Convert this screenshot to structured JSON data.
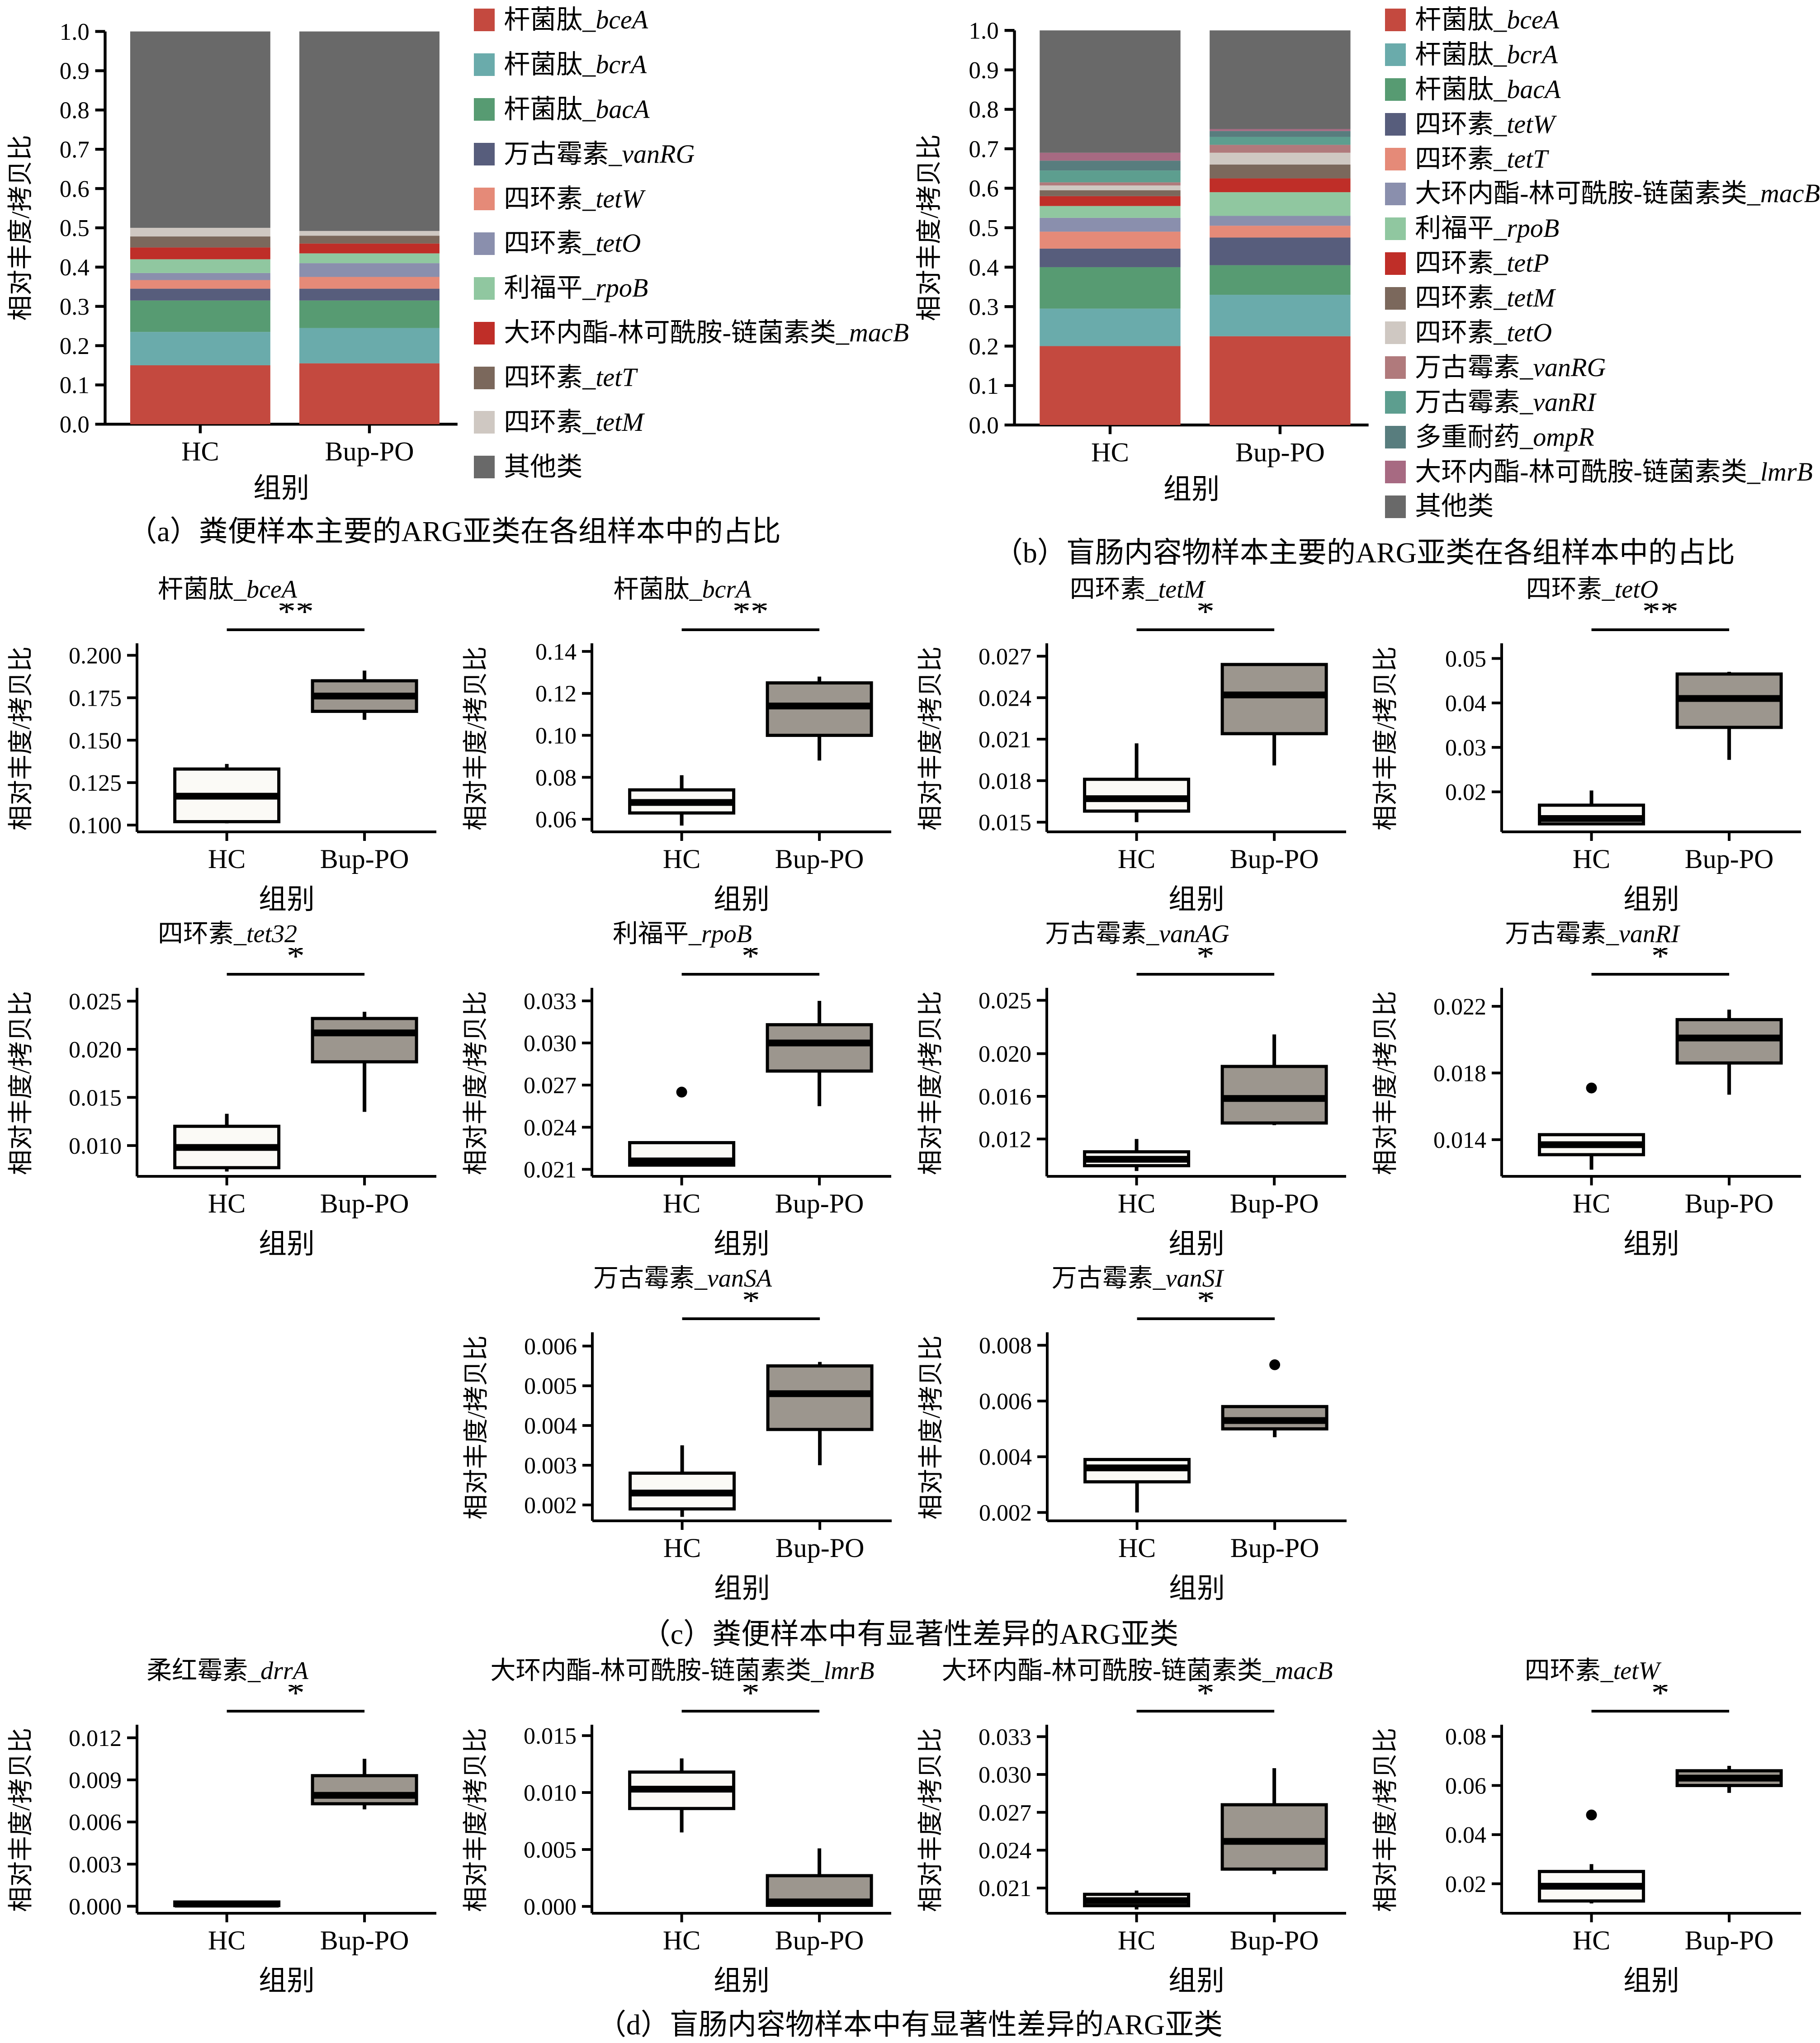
{
  "axis": {
    "ylabel": "相对丰度/拷贝比",
    "xlabel": "组别",
    "categories": [
      "HC",
      "Bup-PO"
    ]
  },
  "captions": {
    "a": "（a）粪便样本主要的ARG亚类在各组样本中的占比",
    "b": "（b）盲肠内容物样本主要的ARG亚类在各组样本中的占比",
    "c": "（c）粪便样本中有显著性差异的ARG亚类",
    "d": "（d）盲肠内容物样本中有显著性差异的ARG亚类"
  },
  "colors": {
    "red": "#c4493f",
    "teal": "#6aabab",
    "green": "#579b72",
    "darkslate": "#575d7c",
    "salmon": "#e58a78",
    "grayblue": "#8a8fad",
    "lightgreen": "#90c7a0",
    "darkred": "#bf2e28",
    "brown": "#7b685c",
    "beige": "#cfc8c2",
    "dustyrose": "#b07a7c",
    "seagreen": "#5d9e8f",
    "darkteal": "#587d7e",
    "mauve": "#a76a82",
    "othergray": "#696969",
    "box_hc_fill": "#fbfaf6",
    "box_bup_fill": "#9c968e"
  },
  "chart_data": [
    {
      "id": "a",
      "type": "bar",
      "stacked": true,
      "target": "chart-a",
      "categories": [
        "HC",
        "Bup-PO"
      ],
      "ylim": [
        0,
        1
      ],
      "yticks": [
        "0.0",
        "0.1",
        "0.2",
        "0.3",
        "0.4",
        "0.5",
        "0.6",
        "0.7",
        "0.8",
        "0.9",
        "1.0"
      ],
      "legend_position": "right",
      "series": [
        {
          "cn": "杆菌肽",
          "gene": "bceA",
          "color": "#c4493f",
          "values": [
            0.15,
            0.155
          ]
        },
        {
          "cn": "杆菌肽",
          "gene": "bcrA",
          "color": "#6aabab",
          "values": [
            0.085,
            0.09
          ]
        },
        {
          "cn": "杆菌肽",
          "gene": "bacA",
          "color": "#579b72",
          "values": [
            0.08,
            0.07
          ]
        },
        {
          "cn": "万古霉素",
          "gene": "vanRG",
          "color": "#575d7c",
          "values": [
            0.03,
            0.03
          ]
        },
        {
          "cn": "四环素",
          "gene": "tetW",
          "color": "#e58a78",
          "values": [
            0.022,
            0.03
          ]
        },
        {
          "cn": "四环素",
          "gene": "tetO",
          "color": "#8a8fad",
          "values": [
            0.018,
            0.035
          ]
        },
        {
          "cn": "利福平",
          "gene": "rpoB",
          "color": "#90c7a0",
          "values": [
            0.035,
            0.025
          ]
        },
        {
          "cn": "大环内酯-林可酰胺-链菌素类",
          "gene": "macB",
          "color": "#bf2e28",
          "values": [
            0.03,
            0.025
          ]
        },
        {
          "cn": "四环素",
          "gene": "tetT",
          "color": "#7b685c",
          "values": [
            0.028,
            0.02
          ]
        },
        {
          "cn": "四环素",
          "gene": "tetM",
          "color": "#cfc8c2",
          "values": [
            0.022,
            0.012
          ]
        },
        {
          "cn": "其他类",
          "gene": "",
          "color": "#696969",
          "values": [
            0.5,
            0.508
          ]
        }
      ]
    },
    {
      "id": "b",
      "type": "bar",
      "stacked": true,
      "target": "chart-b",
      "categories": [
        "HC",
        "Bup-PO"
      ],
      "ylim": [
        0,
        1
      ],
      "yticks": [
        "0.0",
        "0.1",
        "0.2",
        "0.3",
        "0.4",
        "0.5",
        "0.6",
        "0.7",
        "0.8",
        "0.9",
        "1.0"
      ],
      "legend_position": "right",
      "series": [
        {
          "cn": "杆菌肽",
          "gene": "bceA",
          "color": "#c4493f",
          "values": [
            0.2,
            0.225
          ]
        },
        {
          "cn": "杆菌肽",
          "gene": "bcrA",
          "color": "#6aabab",
          "values": [
            0.095,
            0.105
          ]
        },
        {
          "cn": "杆菌肽",
          "gene": "bacA",
          "color": "#579b72",
          "values": [
            0.105,
            0.075
          ]
        },
        {
          "cn": "四环素",
          "gene": "tetW",
          "color": "#575d7c",
          "values": [
            0.047,
            0.07
          ]
        },
        {
          "cn": "四环素",
          "gene": "tetT",
          "color": "#e58a78",
          "values": [
            0.043,
            0.03
          ]
        },
        {
          "cn": "大环内酯-林可酰胺-链菌素类",
          "gene": "macB",
          "color": "#8a8fad",
          "values": [
            0.035,
            0.025
          ]
        },
        {
          "cn": "利福平",
          "gene": "rpoB",
          "color": "#90c7a0",
          "values": [
            0.03,
            0.06
          ]
        },
        {
          "cn": "四环素",
          "gene": "tetP",
          "color": "#bf2e28",
          "values": [
            0.025,
            0.035
          ]
        },
        {
          "cn": "四环素",
          "gene": "tetM",
          "color": "#7b685c",
          "values": [
            0.015,
            0.035
          ]
        },
        {
          "cn": "四环素",
          "gene": "tetO",
          "color": "#cfc8c2",
          "values": [
            0.012,
            0.03
          ]
        },
        {
          "cn": "万古霉素",
          "gene": "vanRG",
          "color": "#b07a7c",
          "values": [
            0.008,
            0.02
          ]
        },
        {
          "cn": "万古霉素",
          "gene": "vanRI",
          "color": "#5d9e8f",
          "values": [
            0.03,
            0.02
          ]
        },
        {
          "cn": "多重耐药",
          "gene": "ompR",
          "color": "#587d7e",
          "values": [
            0.025,
            0.015
          ]
        },
        {
          "cn": "大环内酯-林可酰胺-链菌素类",
          "gene": "lmrB",
          "color": "#a76a82",
          "values": [
            0.02,
            0.005
          ]
        },
        {
          "cn": "其他类",
          "gene": "",
          "color": "#696969",
          "values": [
            0.31,
            0.25
          ]
        }
      ]
    },
    {
      "id": "c1",
      "type": "box",
      "row": "row-c1",
      "title_cn": "杆菌肽",
      "title_gene": "bceA",
      "significance": "**",
      "ylim": [
        0.096,
        0.206
      ],
      "yticks": [
        "0.100",
        "0.125",
        "0.150",
        "0.175",
        "0.200"
      ],
      "groups": [
        {
          "name": "HC",
          "whislo": 0.101,
          "q1": 0.102,
          "med": 0.117,
          "q3": 0.133,
          "whishi": 0.136,
          "fliers": []
        },
        {
          "name": "Bup-PO",
          "whislo": 0.162,
          "q1": 0.167,
          "med": 0.176,
          "q3": 0.185,
          "whishi": 0.191,
          "fliers": []
        }
      ]
    },
    {
      "id": "c2",
      "type": "box",
      "row": "row-c1",
      "title_cn": "杆菌肽",
      "title_gene": "bcrA",
      "significance": "**",
      "ylim": [
        0.054,
        0.143
      ],
      "yticks": [
        "0.06",
        "0.08",
        "0.10",
        "0.12",
        "0.14"
      ],
      "groups": [
        {
          "name": "HC",
          "whislo": 0.057,
          "q1": 0.063,
          "med": 0.068,
          "q3": 0.074,
          "whishi": 0.081,
          "fliers": []
        },
        {
          "name": "Bup-PO",
          "whislo": 0.088,
          "q1": 0.1,
          "med": 0.114,
          "q3": 0.125,
          "whishi": 0.128,
          "fliers": []
        }
      ]
    },
    {
      "id": "c3",
      "type": "box",
      "row": "row-c1",
      "title_cn": "四环素",
      "title_gene": "tetM",
      "significance": "*",
      "ylim": [
        0.0143,
        0.0278
      ],
      "yticks": [
        "0.015",
        "0.018",
        "0.021",
        "0.024",
        "0.027"
      ],
      "groups": [
        {
          "name": "HC",
          "whislo": 0.015,
          "q1": 0.0158,
          "med": 0.0167,
          "q3": 0.0181,
          "whishi": 0.0207,
          "fliers": []
        },
        {
          "name": "Bup-PO",
          "whislo": 0.0191,
          "q1": 0.0214,
          "med": 0.0242,
          "q3": 0.0264,
          "whishi": 0.0264,
          "fliers": []
        }
      ]
    },
    {
      "id": "c4",
      "type": "box",
      "row": "row-c1",
      "title_cn": "四环素",
      "title_gene": "tetO",
      "significance": "**",
      "ylim": [
        0.011,
        0.053
      ],
      "yticks": [
        "0.02",
        "0.03",
        "0.04",
        "0.05"
      ],
      "groups": [
        {
          "name": "HC",
          "whislo": 0.0125,
          "q1": 0.0128,
          "med": 0.014,
          "q3": 0.017,
          "whishi": 0.0203,
          "fliers": []
        },
        {
          "name": "Bup-PO",
          "whislo": 0.0272,
          "q1": 0.0345,
          "med": 0.041,
          "q3": 0.0465,
          "whishi": 0.047,
          "fliers": []
        }
      ]
    },
    {
      "id": "c5",
      "type": "box",
      "row": "row-c2",
      "title_cn": "四环素",
      "title_gene": "tet32",
      "significance": "*",
      "ylim": [
        0.0068,
        0.0262
      ],
      "yticks": [
        "0.010",
        "0.015",
        "0.020",
        "0.025"
      ],
      "groups": [
        {
          "name": "HC",
          "whislo": 0.0073,
          "q1": 0.0077,
          "med": 0.0098,
          "q3": 0.012,
          "whishi": 0.0133,
          "fliers": []
        },
        {
          "name": "Bup-PO",
          "whislo": 0.0135,
          "q1": 0.0187,
          "med": 0.0217,
          "q3": 0.0232,
          "whishi": 0.0239,
          "fliers": []
        }
      ]
    },
    {
      "id": "c6",
      "type": "box",
      "row": "row-c2",
      "title_cn": "利福平",
      "title_gene": "rpoB",
      "significance": "*",
      "ylim": [
        0.0205,
        0.0338
      ],
      "yticks": [
        "0.021",
        "0.024",
        "0.027",
        "0.030",
        "0.033"
      ],
      "groups": [
        {
          "name": "HC",
          "whislo": 0.0212,
          "q1": 0.0213,
          "med": 0.0216,
          "q3": 0.0229,
          "whishi": 0.0229,
          "fliers": [
            0.0265
          ]
        },
        {
          "name": "Bup-PO",
          "whislo": 0.0255,
          "q1": 0.028,
          "med": 0.03,
          "q3": 0.0313,
          "whishi": 0.033,
          "fliers": []
        }
      ]
    },
    {
      "id": "c7",
      "type": "box",
      "row": "row-c2",
      "title_cn": "万古霉素",
      "title_gene": "vanAG",
      "significance": "*",
      "ylim": [
        0.0085,
        0.026
      ],
      "yticks": [
        "0.012",
        "0.016",
        "0.020",
        "0.025"
      ],
      "groups": [
        {
          "name": "HC",
          "whislo": 0.009,
          "q1": 0.0095,
          "med": 0.0101,
          "q3": 0.0108,
          "whishi": 0.012,
          "fliers": []
        },
        {
          "name": "Bup-PO",
          "whislo": 0.0133,
          "q1": 0.0135,
          "med": 0.0158,
          "q3": 0.0188,
          "whishi": 0.0218,
          "fliers": []
        }
      ]
    },
    {
      "id": "c8",
      "type": "box",
      "row": "row-c2",
      "title_cn": "万古霉素",
      "title_gene": "vanRI",
      "significance": "*",
      "ylim": [
        0.0118,
        0.023
      ],
      "yticks": [
        "0.014",
        "0.018",
        "0.022"
      ],
      "groups": [
        {
          "name": "HC",
          "whislo": 0.0122,
          "q1": 0.0131,
          "med": 0.0137,
          "q3": 0.0143,
          "whishi": 0.0143,
          "fliers": [
            0.0171
          ]
        },
        {
          "name": "Bup-PO",
          "whislo": 0.0167,
          "q1": 0.0186,
          "med": 0.0201,
          "q3": 0.0212,
          "whishi": 0.0218,
          "fliers": []
        }
      ]
    },
    {
      "id": "c9",
      "type": "box",
      "row": "row-c3",
      "title_cn": "万古霉素",
      "title_gene": "vanSA",
      "significance": "*",
      "ylim": [
        0.0016,
        0.0063
      ],
      "yticks": [
        "0.002",
        "0.003",
        "0.004",
        "0.005",
        "0.006"
      ],
      "groups": [
        {
          "name": "HC",
          "whislo": 0.0017,
          "q1": 0.0019,
          "med": 0.0023,
          "q3": 0.0028,
          "whishi": 0.0035,
          "fliers": []
        },
        {
          "name": "Bup-PO",
          "whislo": 0.003,
          "q1": 0.0039,
          "med": 0.0048,
          "q3": 0.0055,
          "whishi": 0.0056,
          "fliers": []
        }
      ]
    },
    {
      "id": "c10",
      "type": "box",
      "row": "row-c3",
      "title_cn": "万古霉素",
      "title_gene": "vanSI",
      "significance": "*",
      "ylim": [
        0.0017,
        0.0084
      ],
      "yticks": [
        "0.002",
        "0.004",
        "0.006",
        "0.008"
      ],
      "groups": [
        {
          "name": "HC",
          "whislo": 0.002,
          "q1": 0.0031,
          "med": 0.0036,
          "q3": 0.0039,
          "whishi": 0.0039,
          "fliers": []
        },
        {
          "name": "Bup-PO",
          "whislo": 0.0047,
          "q1": 0.005,
          "med": 0.0053,
          "q3": 0.0058,
          "whishi": 0.0058,
          "fliers": [
            0.0073
          ]
        }
      ]
    },
    {
      "id": "d1",
      "type": "box",
      "row": "row-d",
      "title_cn": "柔红霉素",
      "title_gene": "drrA",
      "significance": "*",
      "ylim": [
        -0.0005,
        0.0128
      ],
      "yticks": [
        "0.000",
        "0.003",
        "0.006",
        "0.009",
        "0.012"
      ],
      "groups": [
        {
          "name": "HC",
          "whislo": 5e-05,
          "q1": 5e-05,
          "med": 0.00015,
          "q3": 0.0003,
          "whishi": 0.0003,
          "fliers": []
        },
        {
          "name": "Bup-PO",
          "whislo": 0.0069,
          "q1": 0.0073,
          "med": 0.0079,
          "q3": 0.0093,
          "whishi": 0.0105,
          "fliers": []
        }
      ]
    },
    {
      "id": "d2",
      "type": "box",
      "row": "row-d",
      "title_cn": "大环内酯-林可酰胺-链菌素类",
      "title_gene": "lmrB",
      "significance": "*",
      "ylim": [
        -0.0006,
        0.0158
      ],
      "yticks": [
        "0.000",
        "0.005",
        "0.010",
        "0.015"
      ],
      "groups": [
        {
          "name": "HC",
          "whislo": 0.0065,
          "q1": 0.0086,
          "med": 0.0103,
          "q3": 0.0118,
          "whishi": 0.013,
          "fliers": []
        },
        {
          "name": "Bup-PO",
          "whislo": 0.0,
          "q1": 0.0001,
          "med": 0.0004,
          "q3": 0.0027,
          "whishi": 0.0051,
          "fliers": []
        }
      ]
    },
    {
      "id": "d3",
      "type": "box",
      "row": "row-d",
      "title_cn": "大环内酯-林可酰胺-链菌素类",
      "title_gene": "macB",
      "significance": "*",
      "ylim": [
        0.019,
        0.0338
      ],
      "yticks": [
        "0.021",
        "0.024",
        "0.027",
        "0.030",
        "0.033"
      ],
      "groups": [
        {
          "name": "HC",
          "whislo": 0.0193,
          "q1": 0.0196,
          "med": 0.02,
          "q3": 0.0205,
          "whishi": 0.0208,
          "fliers": []
        },
        {
          "name": "Bup-PO",
          "whislo": 0.0221,
          "q1": 0.0225,
          "med": 0.0247,
          "q3": 0.0276,
          "whishi": 0.0305,
          "fliers": []
        }
      ]
    },
    {
      "id": "d4",
      "type": "box",
      "row": "row-d",
      "title_cn": "四环素",
      "title_gene": "tetW",
      "significance": "*",
      "ylim": [
        0.008,
        0.084
      ],
      "yticks": [
        "0.02",
        "0.04",
        "0.06",
        "0.08"
      ],
      "groups": [
        {
          "name": "HC",
          "whislo": 0.012,
          "q1": 0.013,
          "med": 0.019,
          "q3": 0.025,
          "whishi": 0.028,
          "fliers": [
            0.048
          ]
        },
        {
          "name": "Bup-PO",
          "whislo": 0.057,
          "q1": 0.06,
          "med": 0.063,
          "q3": 0.066,
          "whishi": 0.068,
          "fliers": []
        }
      ]
    }
  ]
}
